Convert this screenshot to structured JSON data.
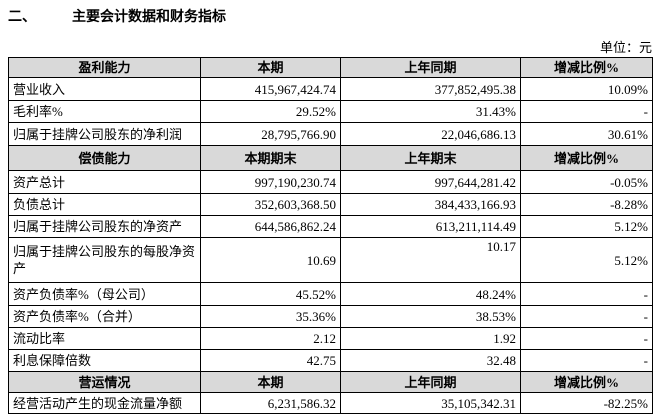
{
  "heading": {
    "number": "二、",
    "title": "主要会计数据和财务指标"
  },
  "unit": "单位：元",
  "sections": [
    {
      "header": [
        "盈利能力",
        "本期",
        "上年同期",
        "增减比例%"
      ],
      "rows": [
        [
          "营业收入",
          "415,967,424.74",
          "377,852,495.38",
          "10.09%"
        ],
        [
          "毛利率%",
          "29.52%",
          "31.43%",
          "-"
        ],
        [
          "归属于挂牌公司股东的净利润",
          "28,795,766.90",
          "22,046,686.13",
          "30.61%"
        ]
      ]
    },
    {
      "header": [
        "偿债能力",
        "本期期末",
        "上年期末",
        "增减比例%"
      ],
      "rows": [
        [
          "资产总计",
          "997,190,230.74",
          "997,644,281.42",
          "-0.05%"
        ],
        [
          "负债总计",
          "352,603,368.50",
          "384,433,166.93",
          "-8.28%"
        ],
        [
          "归属于挂牌公司股东的净资产",
          "644,586,862.24",
          "613,211,114.49",
          "5.12%"
        ],
        [
          "归属于挂牌公司股东的每股净资产",
          "10.69",
          "10.17",
          "5.12%"
        ],
        [
          "资产负债率%（母公司）",
          "45.52%",
          "48.24%",
          "-"
        ],
        [
          "资产负债率%（合并）",
          "35.36%",
          "38.53%",
          "-"
        ],
        [
          "流动比率",
          "2.12",
          "1.92",
          "-"
        ],
        [
          "利息保障倍数",
          "42.75",
          "32.48",
          "-"
        ]
      ]
    },
    {
      "header": [
        "营运情况",
        "本期",
        "上年同期",
        "增减比例%"
      ],
      "rows": [
        [
          "经营活动产生的现金流量净额",
          "6,231,586.32",
          "35,105,342.31",
          "-82.25%"
        ]
      ]
    }
  ]
}
